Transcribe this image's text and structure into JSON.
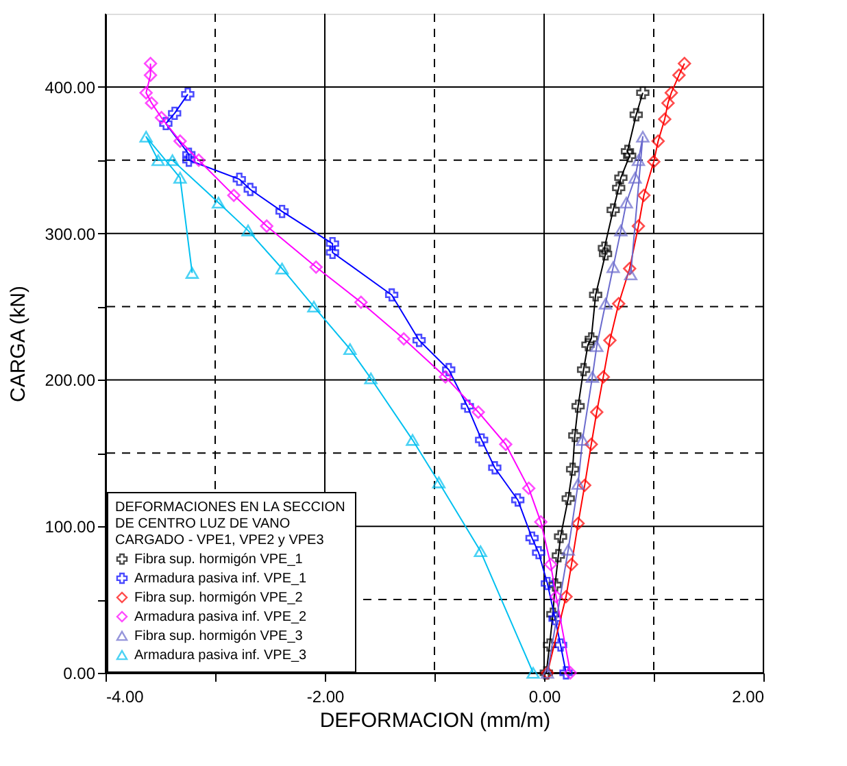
{
  "chart_data": {
    "type": "line",
    "xlabel": "DEFORMACION (mm/m)",
    "ylabel": "CARGA (kN)",
    "legend_title": "DEFORMACIONES EN LA SECCION\nDE CENTRO LUZ DE VANO\nCARGADO - VPE1, VPE2 y VPE3",
    "legend": "bottom left",
    "grid": true,
    "line_style": "solid",
    "xlim": [
      -4,
      2
    ],
    "ylim": [
      0,
      450
    ],
    "xticks": [
      {
        "value": -4,
        "label": "-4.00"
      },
      {
        "value": -3,
        "label": null
      },
      {
        "value": -2,
        "label": "-2.00"
      },
      {
        "value": -1,
        "label": null
      },
      {
        "value": 0,
        "label": "0.00"
      },
      {
        "value": 1,
        "label": null
      },
      {
        "value": 2,
        "label": "2.00"
      }
    ],
    "yticks": [
      {
        "value": 0,
        "label": "0.00"
      },
      {
        "value": 50,
        "label": null
      },
      {
        "value": 100,
        "label": "100.00"
      },
      {
        "value": 150,
        "label": null
      },
      {
        "value": 200,
        "label": "200.00"
      },
      {
        "value": 250,
        "label": null
      },
      {
        "value": 300,
        "label": "300.00"
      },
      {
        "value": 350,
        "label": null
      },
      {
        "value": 400,
        "label": "400.00"
      }
    ],
    "series": [
      {
        "name": "Fibra sup. hormigón VPE_1",
        "color": "#000000",
        "marker": "cross",
        "x": [
          0.02,
          0.05,
          0.08,
          0.1,
          0.13,
          0.15,
          0.22,
          0.26,
          0.28,
          0.31,
          0.36,
          0.4,
          0.43,
          0.47,
          0.56,
          0.55,
          0.63,
          0.68,
          0.7,
          0.78,
          0.76,
          0.84,
          0.9
        ],
        "values": [
          0,
          19,
          40,
          60,
          80,
          93,
          119,
          139,
          162,
          182,
          207,
          224,
          228,
          258,
          286,
          290,
          316,
          331,
          338,
          353,
          356,
          381,
          396
        ]
      },
      {
        "name": "Armadura pasiva inf. VPE_1",
        "color": "#0000ff",
        "marker": "cross",
        "x": [
          0.2,
          0.15,
          0.1,
          0.03,
          -0.05,
          -0.11,
          -0.24,
          -0.45,
          -0.57,
          -0.7,
          -0.87,
          -1.14,
          -1.39,
          -1.93,
          -1.93,
          -2.39,
          -2.68,
          -2.78,
          -3.24,
          -3.24,
          -3.45,
          -3.37,
          -3.25
        ],
        "values": [
          0,
          19,
          37,
          61,
          82,
          92,
          118,
          140,
          159,
          182,
          207,
          227,
          258,
          287,
          293,
          315,
          330,
          337,
          350,
          354,
          375,
          382,
          395
        ]
      },
      {
        "name": "Fibra sup. hormigón VPE_2",
        "color": "#ff0000",
        "marker": "diamond",
        "x": [
          0.03,
          0.2,
          0.25,
          0.31,
          0.37,
          0.43,
          0.48,
          0.54,
          0.6,
          0.68,
          0.78,
          0.86,
          0.91,
          1.0,
          1.04,
          1.1,
          1.13,
          1.16,
          1.23,
          1.28
        ],
        "values": [
          0,
          52,
          74,
          102,
          128,
          156,
          178,
          202,
          227,
          252,
          276,
          305,
          326,
          349,
          363,
          378,
          389,
          396,
          408,
          416
        ]
      },
      {
        "name": "Armadura pasiva inf. VPE_2",
        "color": "#ff00ff",
        "marker": "diamond",
        "x": [
          0.24,
          0.11,
          0.06,
          -0.03,
          -0.14,
          -0.35,
          -0.6,
          -0.9,
          -1.28,
          -1.67,
          -2.08,
          -2.53,
          -2.83,
          -3.15,
          -3.32,
          -3.49,
          -3.58,
          -3.63,
          -3.59,
          -3.59
        ],
        "values": [
          0,
          52,
          74,
          103,
          126,
          156,
          178,
          202,
          228,
          253,
          277,
          305,
          326,
          350,
          363,
          379,
          389,
          396,
          408,
          416
        ]
      },
      {
        "name": "Fibra sup. hormigón VPE_3",
        "color": "#6a6acd",
        "marker": "triangle",
        "x": [
          0.03,
          0.22,
          0.31,
          0.35,
          0.44,
          0.48,
          0.56,
          0.63,
          0.7,
          0.75,
          0.83,
          0.86,
          0.9,
          0.79
        ],
        "values": [
          0,
          84,
          129,
          159,
          202,
          223,
          252,
          277,
          302,
          321,
          338,
          350,
          366,
          272
        ]
      },
      {
        "name": "Armadura pasiva inf. VPE_3",
        "color": "#00c0f0",
        "marker": "triangle",
        "x": [
          -0.1,
          -0.58,
          -0.96,
          -1.2,
          -1.58,
          -1.77,
          -2.1,
          -2.39,
          -2.7,
          -2.97,
          -3.39,
          -3.52,
          -3.63,
          -3.32,
          -3.21
        ],
        "values": [
          0,
          83,
          130,
          159,
          201,
          221,
          250,
          276,
          302,
          321,
          350,
          350,
          366,
          338,
          273
        ]
      }
    ]
  }
}
